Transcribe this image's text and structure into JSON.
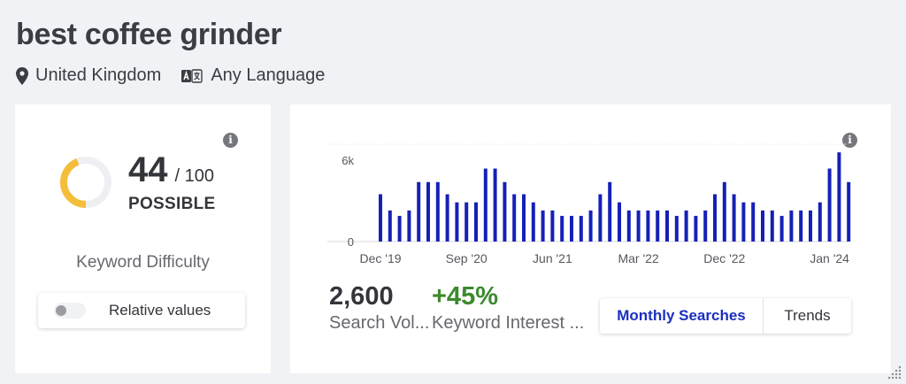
{
  "page": {
    "keyword": "best coffee grinder"
  },
  "filters": {
    "location": "United Kingdom",
    "language": "Any Language"
  },
  "difficulty": {
    "score": "44",
    "max": "/ 100",
    "status": "POSSIBLE",
    "label": "Keyword Difficulty",
    "gauge_fraction": 0.44,
    "gauge_color": "#f4be3b",
    "toggle_label": "Relative values",
    "toggle_on": false
  },
  "volume": {
    "search_volume": "2,600",
    "search_volume_label": "Search Vol...",
    "interest": "+45%",
    "interest_color": "#3b8a2c",
    "interest_label": "Keyword Interest ...",
    "tabs": {
      "monthly": "Monthly Searches",
      "trends": "Trends"
    }
  },
  "chart_data": {
    "type": "bar",
    "y_tick_labels": [
      "6k",
      "0"
    ],
    "x_tick_labels": [
      "Dec '19",
      "Sep '20",
      "Jun '21",
      "Mar '22",
      "Dec '22",
      "Jan '24"
    ],
    "ylim": [
      0,
      7200
    ],
    "bar_color": "#1520b8",
    "values": [
      3500,
      2300,
      1900,
      2300,
      4400,
      4400,
      4400,
      3500,
      2900,
      2900,
      2900,
      5400,
      5400,
      4400,
      3500,
      3500,
      2900,
      2300,
      2300,
      1900,
      1900,
      1900,
      2300,
      3500,
      4400,
      2900,
      2300,
      2300,
      2300,
      2300,
      2300,
      1900,
      2300,
      1900,
      2300,
      3500,
      4400,
      3500,
      2900,
      2900,
      2300,
      2300,
      1900,
      2300,
      2300,
      2300,
      2900,
      5400,
      6600,
      4400
    ]
  }
}
